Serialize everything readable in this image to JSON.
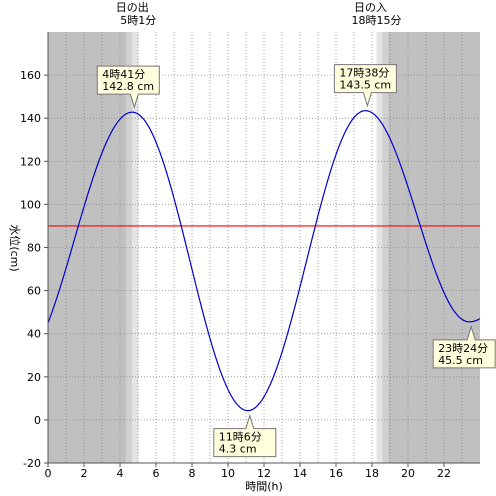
{
  "chart_data": {
    "type": "line",
    "xlabel": "時間(h)",
    "ylabel": "水位(cm)",
    "xlim": [
      0,
      24
    ],
    "ylim": [
      -20,
      180
    ],
    "x_ticks": [
      "0",
      "2",
      "4",
      "6",
      "8",
      "10",
      "12",
      "14",
      "16",
      "18",
      "20",
      "22"
    ],
    "y_ticks": [
      "-20",
      "0",
      "20",
      "40",
      "60",
      "80",
      "100",
      "120",
      "140",
      "160"
    ],
    "reference_line": {
      "y": 90,
      "color": "#ff0000"
    },
    "line_color": "#0000cc",
    "night_shading": {
      "dark": "#c0c0c0",
      "mid": "#d0d0d0",
      "light": "#e4e4e4",
      "twilight_minutes": 40
    },
    "sunrise": {
      "title": "日の出",
      "time": "5時1分",
      "hour": 5.017
    },
    "sunset": {
      "title": "日の入",
      "time": "18時15分",
      "hour": 18.25
    },
    "extrema": [
      {
        "hour": 4.683,
        "value": 142.8,
        "kind": "high",
        "time_label": "4時41分",
        "value_label": "142.8 cm"
      },
      {
        "hour": 11.1,
        "value": 4.3,
        "kind": "low",
        "time_label": "11時6分",
        "value_label": "4.3 cm"
      },
      {
        "hour": 17.633,
        "value": 143.5,
        "kind": "high",
        "time_label": "17時38分",
        "value_label": "143.5 cm"
      },
      {
        "hour": 23.4,
        "value": 45.5,
        "kind": "low",
        "time_label": "23時24分",
        "value_label": "45.5 cm"
      }
    ],
    "start_value": 45,
    "end_value": 47
  }
}
